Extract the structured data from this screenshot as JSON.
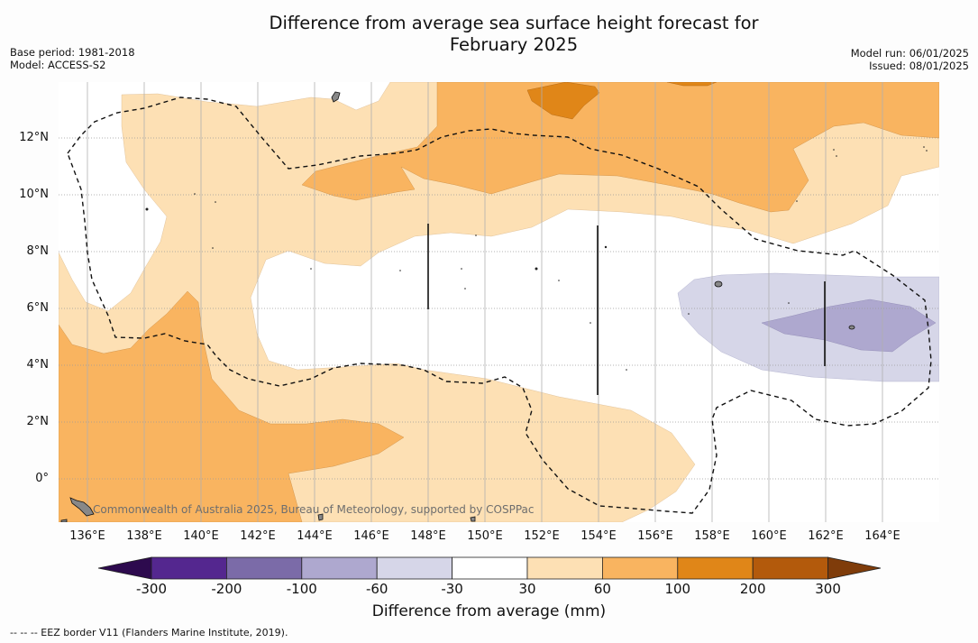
{
  "title_line1": "Difference from average sea surface height forecast for",
  "title_line2": "February 2025",
  "meta": {
    "base_period": "Base period: 1981-2018",
    "model": "Model: ACCESS-S2",
    "model_run": "Model run: 06/01/2025",
    "issued": "Issued: 08/01/2025"
  },
  "lat_labels": [
    "12°N",
    "10°N",
    "8°N",
    "6°N",
    "4°N",
    "2°N",
    "0°"
  ],
  "lon_labels": [
    "136°E",
    "138°E",
    "140°E",
    "142°E",
    "144°E",
    "146°E",
    "148°E",
    "150°E",
    "152°E",
    "154°E",
    "156°E",
    "158°E",
    "160°E",
    "162°E",
    "164°E"
  ],
  "credit": "Commonwealth of Australia 2025, Bureau of Meteorology, supported by COSPPac",
  "colorbar": {
    "ticks": [
      "-300",
      "-200",
      "-100",
      "-60",
      "-30",
      "30",
      "60",
      "100",
      "200",
      "300"
    ],
    "title": "Difference from average (mm)",
    "colors": [
      "#2d0a4e",
      "#54278f",
      "#7b6ba8",
      "#aea8cf",
      "#d6d6e8",
      "#ffffff",
      "#fde0b4",
      "#f9b460",
      "#e08618",
      "#b35a0c",
      "#7f3c0a"
    ]
  },
  "footer": "--  --  -- EEZ border V11 (Flanders Marine Institute, 2019)."
}
